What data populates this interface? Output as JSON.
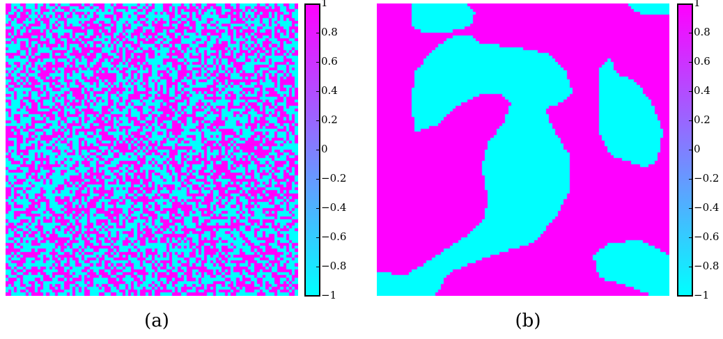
{
  "chart_data": [
    {
      "type": "heatmap",
      "caption": "(a)",
      "description": "random spin field, values in {-1, 1}",
      "grid_size": [
        100,
        100
      ],
      "value_range": [
        -1,
        1
      ],
      "colormap": {
        "min_color": "#00ffff",
        "max_color": "#ff00ff"
      },
      "colorbar_ticks": [
        "1",
        "0.8",
        "0.6",
        "0.4",
        "0.2",
        "0",
        "−0.2",
        "−0.4",
        "−0.6",
        "−0.8",
        "−1"
      ],
      "colorbar_tick_values": [
        1,
        0.8,
        0.6,
        0.4,
        0.2,
        0,
        -0.2,
        -0.4,
        -0.6,
        -0.8,
        -1
      ]
    },
    {
      "type": "heatmap",
      "caption": "(b)",
      "description": "coarsened spin domains, values in {-1, 1}",
      "grid_size": [
        100,
        100
      ],
      "value_range": [
        -1,
        1
      ],
      "colormap": {
        "min_color": "#00ffff",
        "max_color": "#ff00ff"
      },
      "colorbar_ticks": [
        "1",
        "0.8",
        "0.6",
        "0.4",
        "0.2",
        "0",
        "−0.2",
        "−0.4",
        "−0.6",
        "−0.8",
        "−1"
      ],
      "colorbar_tick_values": [
        1,
        0.8,
        0.6,
        0.4,
        0.2,
        0,
        -0.2,
        -0.4,
        -0.6,
        -0.8,
        -1
      ]
    }
  ]
}
